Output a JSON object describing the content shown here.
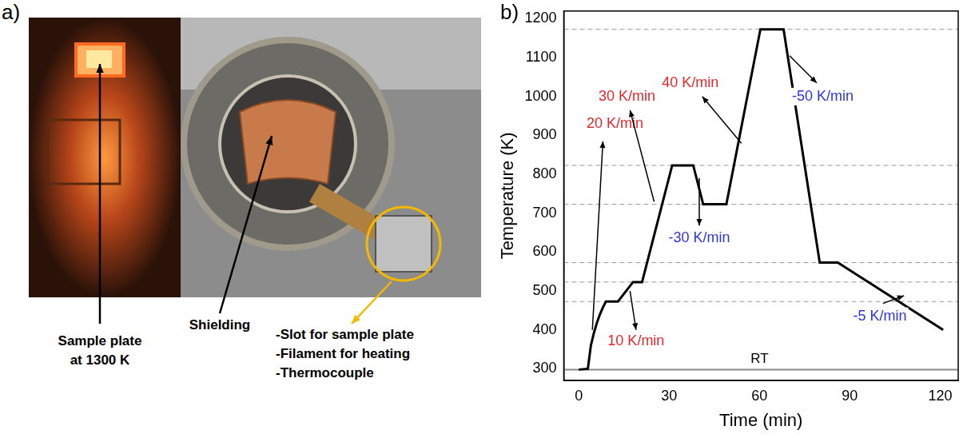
{
  "panel_a": {
    "label": "a)",
    "photo_labels": [
      {
        "lines": [
          "Sample plate",
          "at 1300 K"
        ]
      },
      {
        "lines": [
          "Shielding"
        ]
      },
      {
        "lines": [
          "-Slot for sample plate",
          "-Filament for heating",
          "-Thermocouple"
        ]
      }
    ]
  },
  "chart_data": {
    "type": "line",
    "panel_label": "b)",
    "x_label": "Time (min)",
    "y_label": "Temperature (K)",
    "x": [
      0,
      3,
      4,
      5,
      6,
      7,
      8,
      9,
      13,
      18,
      21,
      31,
      38,
      41.3,
      49,
      60.3,
      68,
      80,
      86,
      121
    ],
    "series": [
      {
        "name": "Temperature",
        "color": "#000000",
        "marker": "none",
        "line_style": "solid",
        "values": [
          298,
          300,
          360,
          392,
          418,
          440,
          458,
          473,
          473,
          523,
          523,
          823,
          823,
          723,
          723,
          1173,
          1173,
          573,
          573,
          400
        ]
      }
    ],
    "xlim": [
      -5,
      126
    ],
    "xticks": [
      0,
      30,
      60,
      90,
      120
    ],
    "ylim": [
      270,
      1220
    ],
    "yticks": [
      300,
      400,
      500,
      600,
      700,
      800,
      900,
      1000,
      1100,
      1200
    ],
    "grid": false,
    "reference_lines": [
      {
        "value": 1173,
        "line_style": "dashed",
        "color": "#999999"
      },
      {
        "value": 823,
        "line_style": "dashed",
        "color": "#999999"
      },
      {
        "value": 723,
        "line_style": "dashed",
        "color": "#999999"
      },
      {
        "value": 573,
        "line_style": "dashed",
        "color": "#999999"
      },
      {
        "value": 523,
        "line_style": "dashed",
        "color": "#999999"
      },
      {
        "value": 473,
        "line_style": "dashed",
        "color": "#999999"
      },
      {
        "value": 298,
        "line_style": "solid",
        "color": "#888888",
        "label": "RT",
        "label_x": 60
      }
    ],
    "annotations": [
      {
        "text": "20 K/min",
        "color": "#e8262b",
        "x": 12,
        "y": 930,
        "arrow_from": [
          4.5,
          400
        ],
        "arrow_to": [
          8,
          885
        ]
      },
      {
        "text": "10 K/min",
        "color": "#e8262b",
        "x": 19,
        "y": 370,
        "arrow_from": [
          17,
          500
        ],
        "arrow_to": [
          19,
          400
        ]
      },
      {
        "text": "30 K/min",
        "color": "#e8262b",
        "x": 16,
        "y": 1000,
        "arrow_from": [
          25,
          730
        ],
        "arrow_to": [
          17,
          965
        ]
      },
      {
        "text": "-30 K/min",
        "color": "#2a35e0",
        "x": 40,
        "y": 635,
        "arrow_from": [
          40,
          790
        ],
        "arrow_to": [
          40,
          668
        ]
      },
      {
        "text": "40 K/min",
        "color": "#e8262b",
        "x": 37,
        "y": 1035,
        "arrow_from": [
          54,
          880
        ],
        "arrow_to": [
          41,
          1000
        ]
      },
      {
        "text": "-50 K/min",
        "color": "#2a35e0",
        "x": 81,
        "y": 1000,
        "arrow_from": [
          70,
          1105
        ],
        "arrow_to": [
          79,
          1035
        ]
      },
      {
        "text": "-5 K/min",
        "color": "#2a35e0",
        "x": 100,
        "y": 435,
        "arrow_from": [
          101,
          468
        ],
        "arrow_to": [
          108,
          488
        ]
      }
    ]
  }
}
